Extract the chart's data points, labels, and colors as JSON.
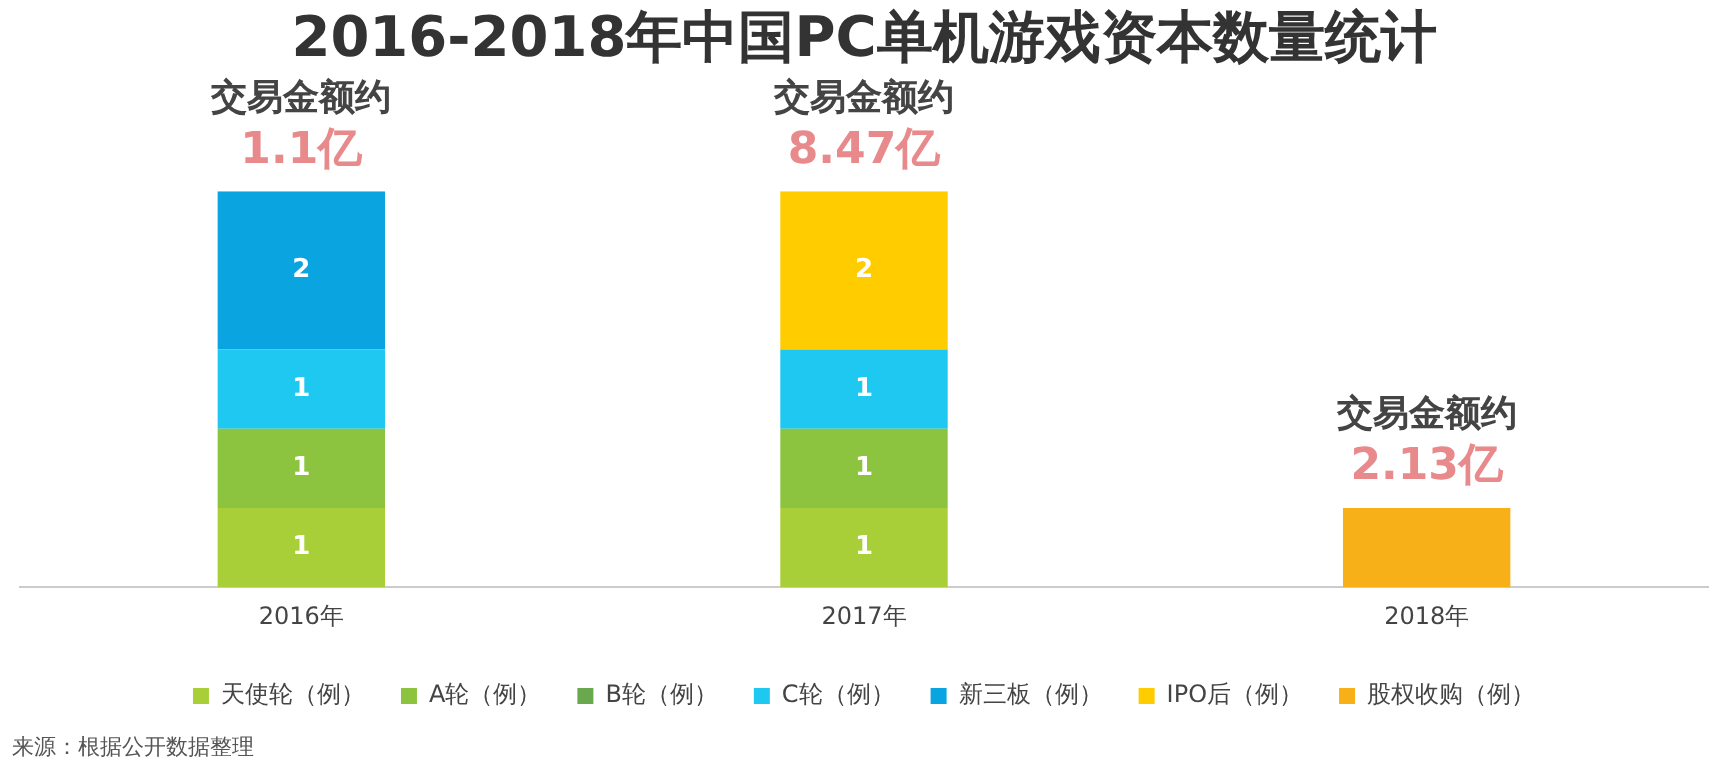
{
  "chart_data": {
    "type": "bar",
    "title": "2016-2018年中国PC单机游戏资本数量统计",
    "categories": [
      "2016年",
      "2017年",
      "2018年"
    ],
    "stacked": true,
    "grid": false,
    "legend": "bottom",
    "series": [
      {
        "name": "天使轮（例）",
        "color": "#a9cf38",
        "values": [
          1,
          1,
          null
        ],
        "value_labels": [
          "1",
          "1",
          null
        ]
      },
      {
        "name": "A轮（例）",
        "color": "#8cc43f",
        "values": [
          1,
          1,
          null
        ],
        "value_labels": [
          "1",
          "1",
          null
        ]
      },
      {
        "name": "B轮（例）",
        "color": "#6aa84f",
        "values": [
          null,
          null,
          null
        ],
        "value_labels": [
          null,
          null,
          null
        ]
      },
      {
        "name": "C轮（例）",
        "color": "#1ec8f0",
        "values": [
          1,
          1,
          null
        ],
        "value_labels": [
          "1",
          "1",
          null
        ]
      },
      {
        "name": "新三板（例）",
        "color": "#0aa5e0",
        "values": [
          2,
          null,
          null
        ],
        "value_labels": [
          "2",
          null,
          null
        ]
      },
      {
        "name": "IPO后（例）",
        "color": "#ffcc00",
        "values": [
          null,
          2,
          null
        ],
        "value_labels": [
          null,
          "2",
          null
        ]
      },
      {
        "name": "股权收购（例）",
        "color": "#f8b019",
        "values": [
          null,
          null,
          1
        ],
        "value_labels": [
          null,
          null,
          null
        ]
      }
    ],
    "annotations": [
      {
        "text": "交易金额约",
        "x": "2016年",
        "y": 5
      },
      {
        "text": "1.1亿",
        "x": "2016年",
        "y": 5
      },
      {
        "text": "交易金额约",
        "x": "2017年",
        "y": 5
      },
      {
        "text": "8.47亿",
        "x": "2017年",
        "y": 5
      },
      {
        "text": "交易金额约",
        "x": "2018年",
        "y": 1
      },
      {
        "text": "2.13亿",
        "x": "2018年",
        "y": 1
      },
      "来源：根据公开数据整理"
    ]
  }
}
